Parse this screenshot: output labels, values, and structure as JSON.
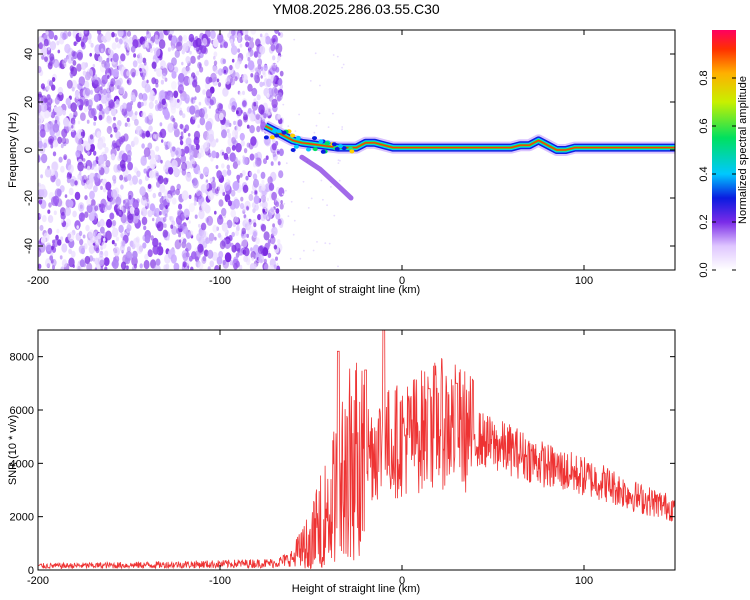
{
  "title": "YM08.2025.286.03.55.C30",
  "chart_data": [
    {
      "type": "heatmap",
      "name": "spectrogram",
      "xlabel": "Height of straight line (km)",
      "ylabel": "Frequency (Hz)",
      "xlim": [
        -200,
        150
      ],
      "ylim": [
        -50,
        50
      ],
      "xticks": [
        -200,
        -100,
        0,
        100
      ],
      "yticks": [
        -40,
        -20,
        0,
        20,
        40
      ],
      "noise_region_x": [
        -200,
        -70
      ],
      "ridge": [
        [
          -75,
          10
        ],
        [
          -70,
          8
        ],
        [
          -65,
          6
        ],
        [
          -60,
          4
        ],
        [
          -55,
          3
        ],
        [
          -50,
          2.5
        ],
        [
          -45,
          2
        ],
        [
          -40,
          1.5
        ],
        [
          -35,
          1
        ],
        [
          -30,
          1
        ],
        [
          -25,
          1
        ],
        [
          -20,
          3
        ],
        [
          -15,
          3
        ],
        [
          -10,
          2
        ],
        [
          -5,
          1
        ],
        [
          0,
          1
        ],
        [
          10,
          1
        ],
        [
          20,
          1
        ],
        [
          30,
          1
        ],
        [
          40,
          1
        ],
        [
          50,
          1
        ],
        [
          60,
          1
        ],
        [
          65,
          2
        ],
        [
          70,
          2
        ],
        [
          75,
          4
        ],
        [
          80,
          2
        ],
        [
          85,
          0
        ],
        [
          90,
          0
        ],
        [
          95,
          1
        ],
        [
          100,
          1
        ],
        [
          110,
          1
        ],
        [
          120,
          1
        ],
        [
          130,
          1
        ],
        [
          140,
          1
        ],
        [
          150,
          1
        ]
      ],
      "tail": [
        [
          -55,
          -3
        ],
        [
          -45,
          -8
        ],
        [
          -35,
          -15
        ],
        [
          -28,
          -20
        ]
      ],
      "colorbar": {
        "label": "Normalized spectral amplitude",
        "ticks": [
          0.0,
          0.2,
          0.4,
          0.6,
          0.8
        ],
        "tick_labels": [
          "0.0",
          "0.2",
          "0.4",
          "0.6",
          "0.8"
        ],
        "range": [
          0,
          1
        ]
      }
    },
    {
      "type": "line",
      "name": "snr",
      "xlabel": "Height of straight line (km)",
      "ylabel": "SNR (10 * v/v)",
      "xlim": [
        -200,
        150
      ],
      "ylim": [
        0,
        9000
      ],
      "xticks": [
        -200,
        -100,
        0,
        100
      ],
      "yticks": [
        0,
        2000,
        4000,
        6000,
        8000
      ],
      "color": "#ee3333",
      "envelope": [
        [
          -200,
          150
        ],
        [
          -150,
          180
        ],
        [
          -100,
          220
        ],
        [
          -70,
          260
        ],
        [
          -62,
          400
        ],
        [
          -55,
          800
        ],
        [
          -50,
          1200
        ],
        [
          -45,
          1800
        ],
        [
          -40,
          2400
        ],
        [
          -35,
          3200
        ],
        [
          -30,
          3900
        ],
        [
          -25,
          4300
        ],
        [
          -20,
          4500
        ],
        [
          -15,
          4600
        ],
        [
          -10,
          4700
        ],
        [
          -5,
          4800
        ],
        [
          0,
          4900
        ],
        [
          10,
          5200
        ],
        [
          20,
          5500
        ],
        [
          30,
          5400
        ],
        [
          40,
          5000
        ],
        [
          50,
          4700
        ],
        [
          60,
          4500
        ],
        [
          70,
          4200
        ],
        [
          80,
          3900
        ],
        [
          90,
          3700
        ],
        [
          100,
          3500
        ],
        [
          110,
          3300
        ],
        [
          120,
          3000
        ],
        [
          130,
          2700
        ],
        [
          140,
          2500
        ],
        [
          150,
          2300
        ]
      ],
      "peaks": [
        [
          -35,
          8200
        ],
        [
          -20,
          7500
        ],
        [
          -10,
          9000
        ],
        [
          30,
          7000
        ],
        [
          15,
          6800
        ]
      ]
    }
  ]
}
